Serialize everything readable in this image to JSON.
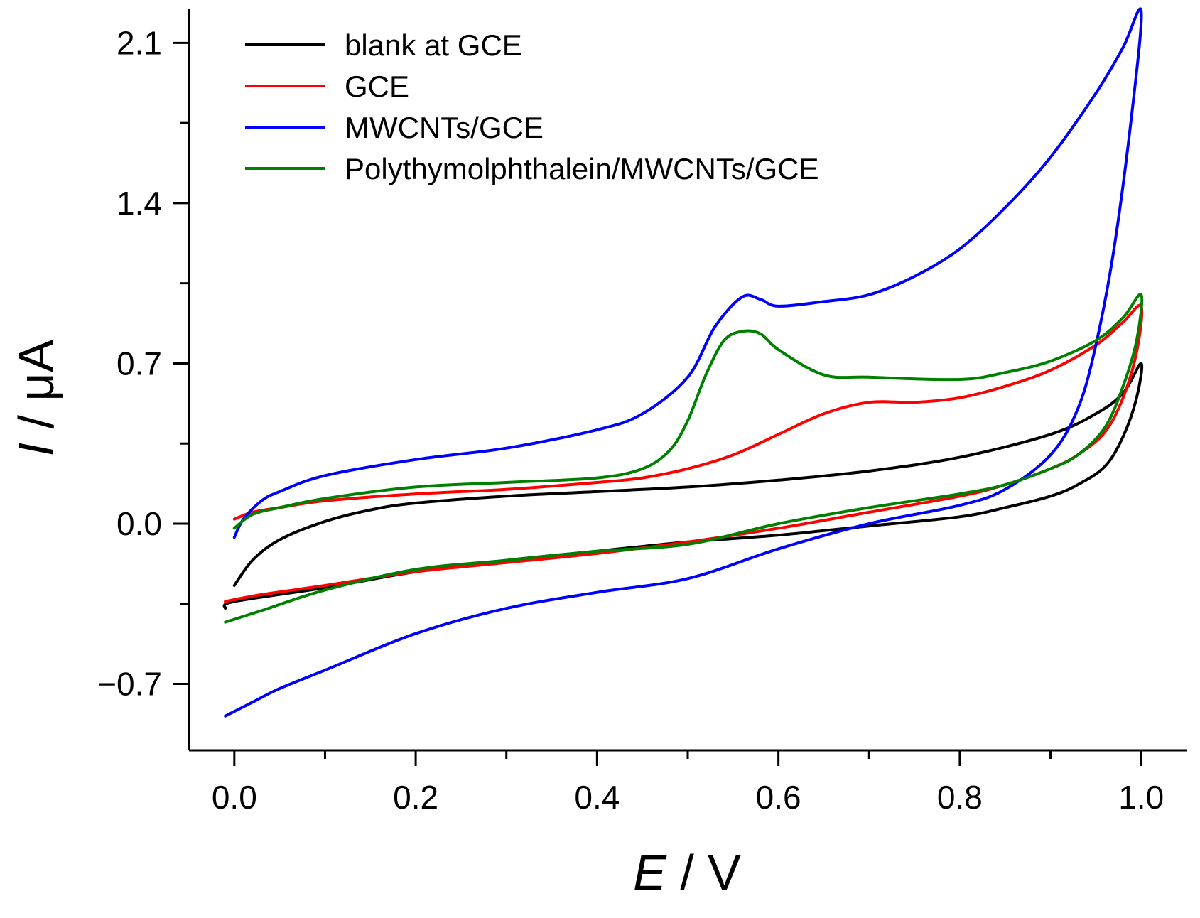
{
  "chart_data": {
    "type": "line",
    "xlabel": {
      "symbol": "E",
      "unit": " / V"
    },
    "ylabel": {
      "symbol": "I",
      "unit": " / μA"
    },
    "xlim": [
      -0.05,
      1.05
    ],
    "ylim": [
      -0.99,
      2.25
    ],
    "xticks": [
      {
        "value": 0.0,
        "label": "0.0"
      },
      {
        "value": 0.2,
        "label": "0.2"
      },
      {
        "value": 0.4,
        "label": "0.4"
      },
      {
        "value": 0.6,
        "label": "0.6"
      },
      {
        "value": 0.8,
        "label": "0.8"
      },
      {
        "value": 1.0,
        "label": "1.0"
      }
    ],
    "xminor": [
      0.1,
      0.3,
      0.5,
      0.7,
      0.9
    ],
    "yticks": [
      {
        "value": -0.7,
        "label": "−0.7"
      },
      {
        "value": 0.0,
        "label": "0.0"
      },
      {
        "value": 0.7,
        "label": "0.7"
      },
      {
        "value": 1.4,
        "label": "1.4"
      },
      {
        "value": 2.1,
        "label": "2.1"
      }
    ],
    "yminor": [
      -0.35,
      0.35,
      1.05,
      1.75
    ],
    "legend_position": "top-left",
    "series": [
      {
        "name": "blank at GCE",
        "color": "#000000",
        "points": [
          [
            0.0,
            -0.27
          ],
          [
            0.02,
            -0.16
          ],
          [
            0.05,
            -0.07
          ],
          [
            0.1,
            0.01
          ],
          [
            0.15,
            0.06
          ],
          [
            0.2,
            0.09
          ],
          [
            0.3,
            0.12
          ],
          [
            0.4,
            0.14
          ],
          [
            0.5,
            0.16
          ],
          [
            0.6,
            0.19
          ],
          [
            0.7,
            0.23
          ],
          [
            0.8,
            0.29
          ],
          [
            0.9,
            0.39
          ],
          [
            0.95,
            0.48
          ],
          [
            0.98,
            0.57
          ],
          [
            1.0,
            0.7
          ],
          [
            0.995,
            0.55
          ],
          [
            0.98,
            0.38
          ],
          [
            0.96,
            0.25
          ],
          [
            0.93,
            0.17
          ],
          [
            0.9,
            0.12
          ],
          [
            0.85,
            0.07
          ],
          [
            0.8,
            0.03
          ],
          [
            0.7,
            -0.01
          ],
          [
            0.6,
            -0.05
          ],
          [
            0.5,
            -0.08
          ],
          [
            0.4,
            -0.12
          ],
          [
            0.3,
            -0.16
          ],
          [
            0.2,
            -0.21
          ],
          [
            0.1,
            -0.28
          ],
          [
            0.0,
            -0.34
          ],
          [
            -0.01,
            -0.37
          ]
        ]
      },
      {
        "name": "GCE",
        "color": "#ff0000",
        "points": [
          [
            0.0,
            0.02
          ],
          [
            0.02,
            0.05
          ],
          [
            0.05,
            0.07
          ],
          [
            0.1,
            0.1
          ],
          [
            0.2,
            0.13
          ],
          [
            0.3,
            0.15
          ],
          [
            0.4,
            0.18
          ],
          [
            0.45,
            0.2
          ],
          [
            0.5,
            0.24
          ],
          [
            0.55,
            0.3
          ],
          [
            0.6,
            0.39
          ],
          [
            0.65,
            0.48
          ],
          [
            0.7,
            0.53
          ],
          [
            0.75,
            0.53
          ],
          [
            0.8,
            0.55
          ],
          [
            0.85,
            0.6
          ],
          [
            0.9,
            0.67
          ],
          [
            0.95,
            0.78
          ],
          [
            0.98,
            0.88
          ],
          [
            1.0,
            0.95
          ],
          [
            0.995,
            0.75
          ],
          [
            0.98,
            0.55
          ],
          [
            0.96,
            0.4
          ],
          [
            0.93,
            0.3
          ],
          [
            0.9,
            0.24
          ],
          [
            0.85,
            0.17
          ],
          [
            0.8,
            0.12
          ],
          [
            0.7,
            0.05
          ],
          [
            0.6,
            -0.02
          ],
          [
            0.5,
            -0.08
          ],
          [
            0.4,
            -0.13
          ],
          [
            0.3,
            -0.17
          ],
          [
            0.2,
            -0.21
          ],
          [
            0.1,
            -0.27
          ],
          [
            0.03,
            -0.31
          ],
          [
            -0.01,
            -0.34
          ]
        ]
      },
      {
        "name": "MWCNTs/GCE",
        "color": "#0000ff",
        "points": [
          [
            0.0,
            -0.06
          ],
          [
            0.01,
            0.02
          ],
          [
            0.03,
            0.1
          ],
          [
            0.05,
            0.14
          ],
          [
            0.1,
            0.21
          ],
          [
            0.2,
            0.28
          ],
          [
            0.3,
            0.33
          ],
          [
            0.4,
            0.41
          ],
          [
            0.45,
            0.48
          ],
          [
            0.5,
            0.64
          ],
          [
            0.53,
            0.86
          ],
          [
            0.56,
            0.99
          ],
          [
            0.58,
            0.98
          ],
          [
            0.6,
            0.95
          ],
          [
            0.65,
            0.97
          ],
          [
            0.7,
            1.0
          ],
          [
            0.75,
            1.08
          ],
          [
            0.8,
            1.2
          ],
          [
            0.85,
            1.38
          ],
          [
            0.9,
            1.6
          ],
          [
            0.95,
            1.88
          ],
          [
            0.98,
            2.08
          ],
          [
            1.0,
            2.24
          ],
          [
            0.99,
            1.8
          ],
          [
            0.97,
            1.2
          ],
          [
            0.95,
            0.78
          ],
          [
            0.93,
            0.5
          ],
          [
            0.9,
            0.3
          ],
          [
            0.85,
            0.15
          ],
          [
            0.8,
            0.08
          ],
          [
            0.7,
            0.0
          ],
          [
            0.6,
            -0.11
          ],
          [
            0.5,
            -0.24
          ],
          [
            0.4,
            -0.3
          ],
          [
            0.3,
            -0.37
          ],
          [
            0.2,
            -0.48
          ],
          [
            0.1,
            -0.64
          ],
          [
            0.05,
            -0.72
          ],
          [
            0.02,
            -0.78
          ],
          [
            -0.01,
            -0.84
          ]
        ]
      },
      {
        "name": "Polythymolphthalein/MWCNTs/GCE",
        "color": "#008000",
        "points": [
          [
            0.0,
            -0.02
          ],
          [
            0.02,
            0.04
          ],
          [
            0.05,
            0.07
          ],
          [
            0.1,
            0.11
          ],
          [
            0.2,
            0.16
          ],
          [
            0.3,
            0.18
          ],
          [
            0.4,
            0.2
          ],
          [
            0.45,
            0.24
          ],
          [
            0.48,
            0.32
          ],
          [
            0.5,
            0.45
          ],
          [
            0.52,
            0.65
          ],
          [
            0.54,
            0.8
          ],
          [
            0.56,
            0.84
          ],
          [
            0.58,
            0.83
          ],
          [
            0.6,
            0.76
          ],
          [
            0.65,
            0.65
          ],
          [
            0.7,
            0.64
          ],
          [
            0.8,
            0.63
          ],
          [
            0.85,
            0.66
          ],
          [
            0.9,
            0.71
          ],
          [
            0.95,
            0.8
          ],
          [
            0.98,
            0.9
          ],
          [
            1.0,
            1.0
          ],
          [
            0.995,
            0.8
          ],
          [
            0.98,
            0.6
          ],
          [
            0.96,
            0.42
          ],
          [
            0.93,
            0.3
          ],
          [
            0.9,
            0.24
          ],
          [
            0.85,
            0.17
          ],
          [
            0.8,
            0.13
          ],
          [
            0.7,
            0.07
          ],
          [
            0.6,
            0.0
          ],
          [
            0.5,
            -0.09
          ],
          [
            0.4,
            -0.12
          ],
          [
            0.3,
            -0.16
          ],
          [
            0.2,
            -0.2
          ],
          [
            0.1,
            -0.29
          ],
          [
            0.03,
            -0.38
          ],
          [
            -0.01,
            -0.43
          ]
        ]
      }
    ]
  }
}
